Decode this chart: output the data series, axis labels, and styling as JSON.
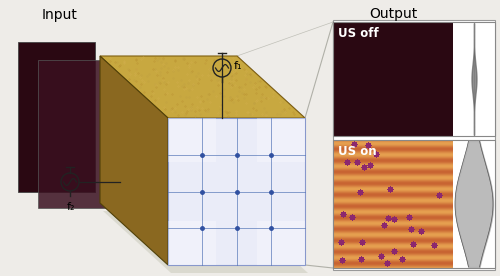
{
  "title_input": "Input",
  "title_output": "Output",
  "label_us_off": "US off",
  "label_us_on": "US on",
  "label_f1": "f₁",
  "label_f2": "f₂",
  "bg_color": "#eeece8",
  "dark_panel1_color": "#2a0812",
  "dark_panel2_color": "#4a1828",
  "gold_top_color": "#c8a840",
  "gold_top_light": "#d4b85a",
  "gold_side_color": "#8a6820",
  "gold_side_dark": "#6a5010",
  "box_glass_color": "#dde0f0",
  "box_grid_color": "#5878b8",
  "box_grid_dot": "#3050a0",
  "right_panel_color": "#2a0812",
  "us_on_stripe_hi": [
    230,
    160,
    80
  ],
  "us_on_stripe_lo": [
    200,
    100,
    50
  ],
  "us_on_dot_color": [
    140,
    40,
    110
  ],
  "profile_color": "#aaaaaa",
  "connector_color": "#aaaaaa",
  "box_shadow_color": "#c8c8c0"
}
